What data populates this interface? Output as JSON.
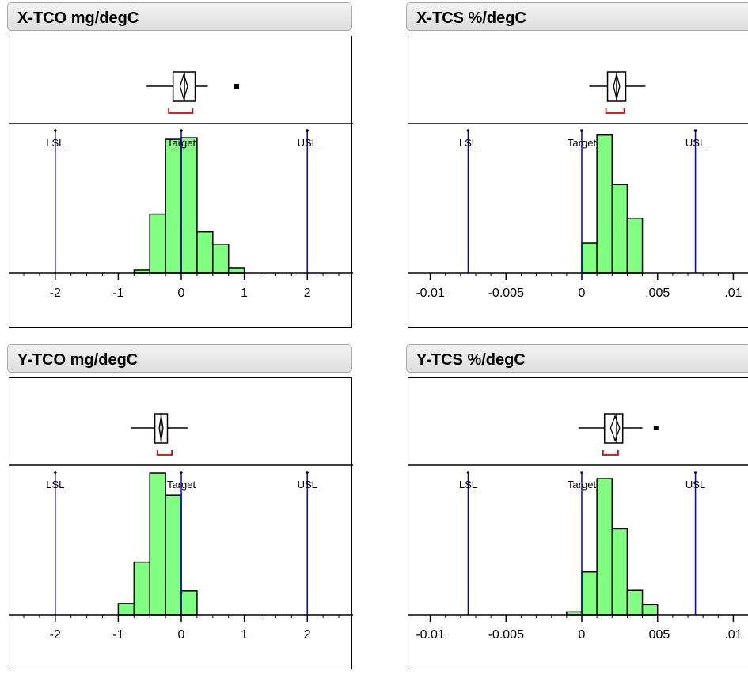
{
  "colors": {
    "bar_fill": "#80ff80",
    "spec_line": "#0000cc",
    "bracket": "#dd0000",
    "outline": "#000000"
  },
  "spec_labels": {
    "lsl": "LSL",
    "target": "Target",
    "usl": "USL"
  },
  "chart_data": [
    {
      "title": "X-TCO mg/degC",
      "type": "bar",
      "xlim": [
        -2.5,
        2.55
      ],
      "ticks": [
        -2,
        -1,
        0,
        1,
        2
      ],
      "tick_labels": [
        "-2",
        "-1",
        "0",
        "1",
        "2"
      ],
      "minor_tick_step": 0.25,
      "bins": {
        "edges": [
          -0.75,
          -0.5,
          -0.25,
          0,
          0.25,
          0.5,
          0.75,
          1.0
        ],
        "counts": [
          2,
          37,
          84,
          85,
          26,
          18,
          3
        ],
        "ymax": 90
      },
      "spec_limits": {
        "lsl": -2,
        "target": 0,
        "usl": 2
      },
      "box": {
        "whisker_low": -0.55,
        "q1": -0.13,
        "median": 0.05,
        "q3": 0.22,
        "whisker_high": 0.42,
        "mean": 0.04,
        "ci_low": -0.02,
        "ci_high": 0.1,
        "outliers": [
          0.88
        ],
        "shortest_half": [
          -0.2,
          0.18
        ]
      }
    },
    {
      "title": "X-TCS %/degC",
      "type": "bar",
      "xlim": [
        -0.0105,
        0.0105
      ],
      "ticks": [
        -0.01,
        -0.005,
        0,
        0.005,
        0.01
      ],
      "tick_labels": [
        "-0.01",
        "-0.005",
        "0",
        ".005",
        ".01"
      ],
      "minor_tick_step": 0.001,
      "bins": {
        "edges": [
          0,
          0.001,
          0.002,
          0.003,
          0.004,
          0.005
        ],
        "counts": [
          17,
          78,
          50,
          31,
          0
        ],
        "ymax": 81
      },
      "spec_limits": {
        "lsl": -0.0075,
        "target": 0,
        "usl": 0.0075
      },
      "box": {
        "whisker_low": 0.0005,
        "q1": 0.0017,
        "median": 0.0023,
        "q3": 0.0029,
        "whisker_high": 0.0042,
        "mean": 0.0023,
        "ci_low": 0.0021,
        "ci_high": 0.0025,
        "outliers": [],
        "shortest_half": [
          0.0016,
          0.0028
        ]
      }
    },
    {
      "title": "Y-TCO mg/degC",
      "type": "bar",
      "xlim": [
        -2.5,
        2.55
      ],
      "ticks": [
        -2,
        -1,
        0,
        1,
        2
      ],
      "tick_labels": [
        "-2",
        "-1",
        "0",
        "1",
        "2"
      ],
      "minor_tick_step": 0.25,
      "bins": {
        "edges": [
          -1.0,
          -0.75,
          -0.5,
          -0.25,
          0,
          0.25
        ],
        "counts": [
          7,
          33,
          89,
          75,
          15
        ],
        "ymax": 90
      },
      "spec_limits": {
        "lsl": -2,
        "target": 0,
        "usl": 2
      },
      "box": {
        "whisker_low": -0.8,
        "q1": -0.42,
        "median": -0.32,
        "q3": -0.22,
        "whisker_high": 0.1,
        "mean": -0.32,
        "ci_low": -0.35,
        "ci_high": -0.29,
        "outliers": [],
        "shortest_half": [
          -0.38,
          -0.15
        ]
      }
    },
    {
      "title": "Y-TCS %/degC",
      "type": "bar",
      "xlim": [
        -0.0105,
        0.0105
      ],
      "ticks": [
        -0.01,
        -0.005,
        0,
        0.005,
        0.01
      ],
      "tick_labels": [
        "-0.01",
        "-0.005",
        "0",
        ".005",
        ".01"
      ],
      "minor_tick_step": 0.001,
      "bins": {
        "edges": [
          -0.001,
          0,
          0.001,
          0.002,
          0.003,
          0.004,
          0.005
        ],
        "counts": [
          2,
          30,
          95,
          60,
          17,
          7
        ],
        "ymax": 100
      },
      "spec_limits": {
        "lsl": -0.0075,
        "target": 0,
        "usl": 0.0075
      },
      "box": {
        "whisker_low": -0.0002,
        "q1": 0.0015,
        "median": 0.0023,
        "q3": 0.0027,
        "whisker_high": 0.004,
        "mean": 0.0022,
        "ci_low": 0.0019,
        "ci_high": 0.0025,
        "outliers": [
          0.0049
        ],
        "shortest_half": [
          0.0014,
          0.0024
        ]
      }
    }
  ]
}
